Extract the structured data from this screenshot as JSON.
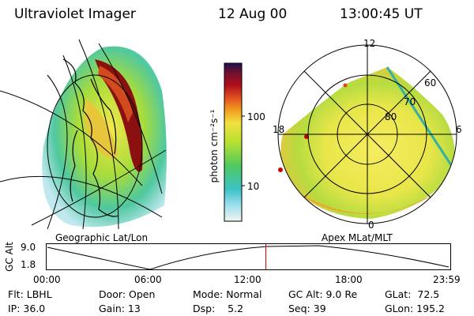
{
  "header": {
    "instrument": "Ultraviolet Imager",
    "date": "12 Aug 00",
    "time": "13:00:45 UT"
  },
  "panels": {
    "left_label": "Geographic Lat/Lon",
    "right_label": "Apex MLat/MLT"
  },
  "colorbar": {
    "label": "photon cm⁻²s⁻¹",
    "tick_100": "100",
    "tick_10": "10"
  },
  "polar_plot": {
    "mlt_labels": [
      "12",
      "18",
      "6",
      "0"
    ],
    "lat_labels": [
      "60",
      "70",
      "80"
    ]
  },
  "timeline": {
    "ylabel": "GC Alt",
    "ytick_top": "9.0",
    "ytick_bottom": "1.8",
    "xticks": [
      "00:00",
      "06:00",
      "12:00",
      "18:00",
      "23:59"
    ],
    "marker_time": "13:00",
    "marker_color": "#cc0000"
  },
  "info": {
    "filter": "Flt: LBHL",
    "ip": "IP: 36.0",
    "door": "Door: Open",
    "gain": "Gain: 13",
    "mode": "Mode: Normal",
    "dsp": "Dsp:    5.2",
    "gc_alt": "GC Alt: 9.0 Re",
    "seq": "Seq: 39",
    "glat": "GLat:  72.5",
    "glon": "GLon: 195.2"
  }
}
